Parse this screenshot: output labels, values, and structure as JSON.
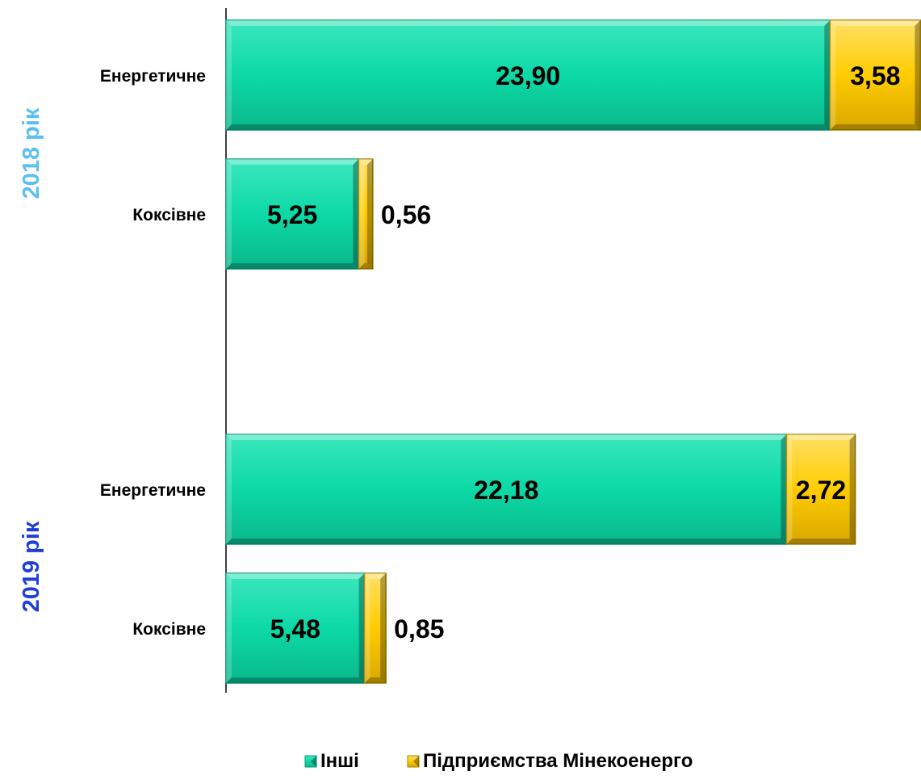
{
  "chart_data": {
    "type": "bar",
    "orientation": "horizontal",
    "stacked": true,
    "title": "",
    "xlabel": "",
    "ylabel": "",
    "xlim": [
      0,
      27.5
    ],
    "grid": false,
    "legend_position": "bottom",
    "groups": [
      {
        "label": "2018 рік",
        "color": "#5BC0F0",
        "categories": [
          "Енергетичне",
          "Коксівне"
        ]
      },
      {
        "label": "2019 рік",
        "color": "#1F3FD6",
        "categories": [
          "Енергетичне",
          "Коксівне"
        ]
      }
    ],
    "series": [
      {
        "name": "Інші",
        "color": "#0DD9A6",
        "values": [
          23.9,
          5.25,
          22.18,
          5.48
        ],
        "labels": [
          "23,90",
          "5,25",
          "22,18",
          "5,48"
        ]
      },
      {
        "name": "Підприємства Мінекоенерго",
        "color": "#FFCC00",
        "values": [
          3.58,
          0.56,
          2.72,
          0.85
        ],
        "labels": [
          "3,58",
          "0,56",
          "2,72",
          "0,85"
        ]
      }
    ]
  }
}
